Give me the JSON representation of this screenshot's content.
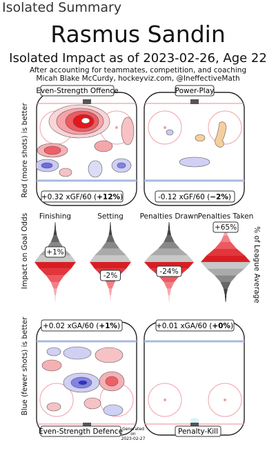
{
  "page_label": "Isolated Summary",
  "player_name": "Rasmus Sandin",
  "subtitle": "Isolated Impact as of 2023-02-26, Age 22",
  "credit_line1": "After accounting for teammates, competition, and coaching",
  "credit_line2": "Micah Blake McCurdy, hockeyviz.com, @IneffectiveMath",
  "left_top_label": "Red (more shots) is better",
  "left_bottom_label": "Blue (fewer shots) is better",
  "left_mid_label": "Impact on Goal Odds",
  "right_mid_label": "% of League Average",
  "generated": {
    "line1": "Generated",
    "line2": "on",
    "date": "2023-02-27"
  },
  "panels": {
    "ev_off": {
      "title": "Even-Strength Offence",
      "stat_prefix": "+0.32 xGF/60 (",
      "stat_pct": "+12%",
      "stat_suffix": ")"
    },
    "pp": {
      "title": "Power-Play",
      "stat_prefix": "-0.12 xGF/60 (",
      "stat_pct": "−2%",
      "stat_suffix": ")"
    },
    "ev_def": {
      "title": "Even-Strength Defence",
      "stat_prefix": "+0.02 xGA/60 (",
      "stat_pct": "+1%",
      "stat_suffix": ")"
    },
    "pk": {
      "title": "Penalty-Kill",
      "stat_prefix": "+0.01 xGA/60 (",
      "stat_pct": "+0%",
      "stat_suffix": ")"
    }
  },
  "chart_data": {
    "type": "violin",
    "categories": [
      "Finishing",
      "Setting",
      "Penalties Drawn",
      "Penalties Taken"
    ],
    "values_pct": [
      1,
      -2,
      -24,
      65
    ],
    "value_labels": [
      "+1%",
      "-2%",
      "-24%",
      "+65%"
    ],
    "colors": {
      "positive": "#e8252a",
      "negative": "#2b2bd6",
      "neutral": "#888888",
      "rink_red": "#f0a0a8",
      "rink_blue": "#a9b8e0"
    }
  }
}
